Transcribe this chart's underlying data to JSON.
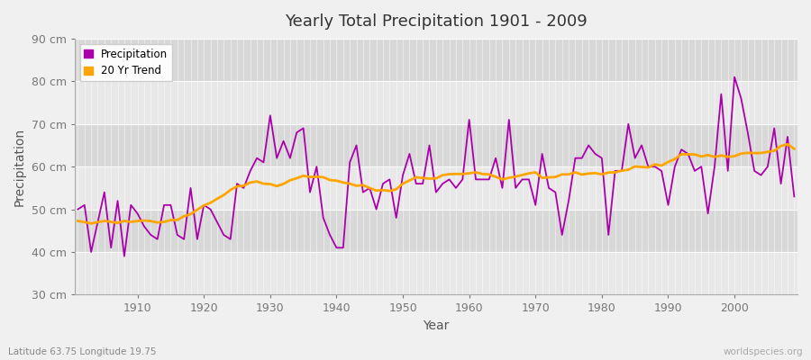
{
  "title": "Yearly Total Precipitation 1901 - 2009",
  "xlabel": "Year",
  "ylabel": "Precipitation",
  "subtitle": "Latitude 63.75 Longitude 19.75",
  "watermark": "worldspecies.org",
  "years": [
    1901,
    1902,
    1903,
    1904,
    1905,
    1906,
    1907,
    1908,
    1909,
    1910,
    1911,
    1912,
    1913,
    1914,
    1915,
    1916,
    1917,
    1918,
    1919,
    1920,
    1921,
    1922,
    1923,
    1924,
    1925,
    1926,
    1927,
    1928,
    1929,
    1930,
    1931,
    1932,
    1933,
    1934,
    1935,
    1936,
    1937,
    1938,
    1939,
    1940,
    1941,
    1942,
    1943,
    1944,
    1945,
    1946,
    1947,
    1948,
    1949,
    1950,
    1951,
    1952,
    1953,
    1954,
    1955,
    1956,
    1957,
    1958,
    1959,
    1960,
    1961,
    1962,
    1963,
    1964,
    1965,
    1966,
    1967,
    1968,
    1969,
    1970,
    1971,
    1972,
    1973,
    1974,
    1975,
    1976,
    1977,
    1978,
    1979,
    1980,
    1981,
    1982,
    1983,
    1984,
    1985,
    1986,
    1987,
    1988,
    1989,
    1990,
    1991,
    1992,
    1993,
    1994,
    1995,
    1996,
    1997,
    1998,
    1999,
    2000,
    2001,
    2002,
    2003,
    2004,
    2005,
    2006,
    2007,
    2008,
    2009
  ],
  "precipitation": [
    50,
    51,
    40,
    47,
    54,
    41,
    52,
    39,
    51,
    49,
    46,
    44,
    43,
    51,
    51,
    44,
    43,
    55,
    43,
    51,
    50,
    47,
    44,
    43,
    56,
    55,
    59,
    62,
    61,
    72,
    62,
    66,
    62,
    68,
    69,
    54,
    60,
    48,
    44,
    41,
    41,
    61,
    65,
    54,
    55,
    50,
    56,
    57,
    48,
    58,
    63,
    56,
    56,
    65,
    54,
    56,
    57,
    55,
    57,
    71,
    57,
    57,
    57,
    62,
    55,
    71,
    55,
    57,
    57,
    51,
    63,
    55,
    54,
    44,
    52,
    62,
    62,
    65,
    63,
    62,
    44,
    59,
    59,
    70,
    62,
    65,
    60,
    60,
    59,
    51,
    60,
    64,
    63,
    59,
    60,
    49,
    60,
    77,
    59,
    81,
    76,
    68,
    59,
    58,
    60,
    69,
    56,
    67,
    53
  ],
  "precip_color": "#aa00aa",
  "trend_color": "#FFA500",
  "bg_color": "#f0f0f0",
  "plot_bg_light": "#e8e8e8",
  "plot_bg_dark": "#d8d8d8",
  "ylim_min": 30,
  "ylim_max": 90,
  "yticks": [
    30,
    40,
    50,
    60,
    70,
    80,
    90
  ],
  "xtick_start": 1910,
  "xtick_end": 2000,
  "xtick_step": 10,
  "trend_window": 20
}
